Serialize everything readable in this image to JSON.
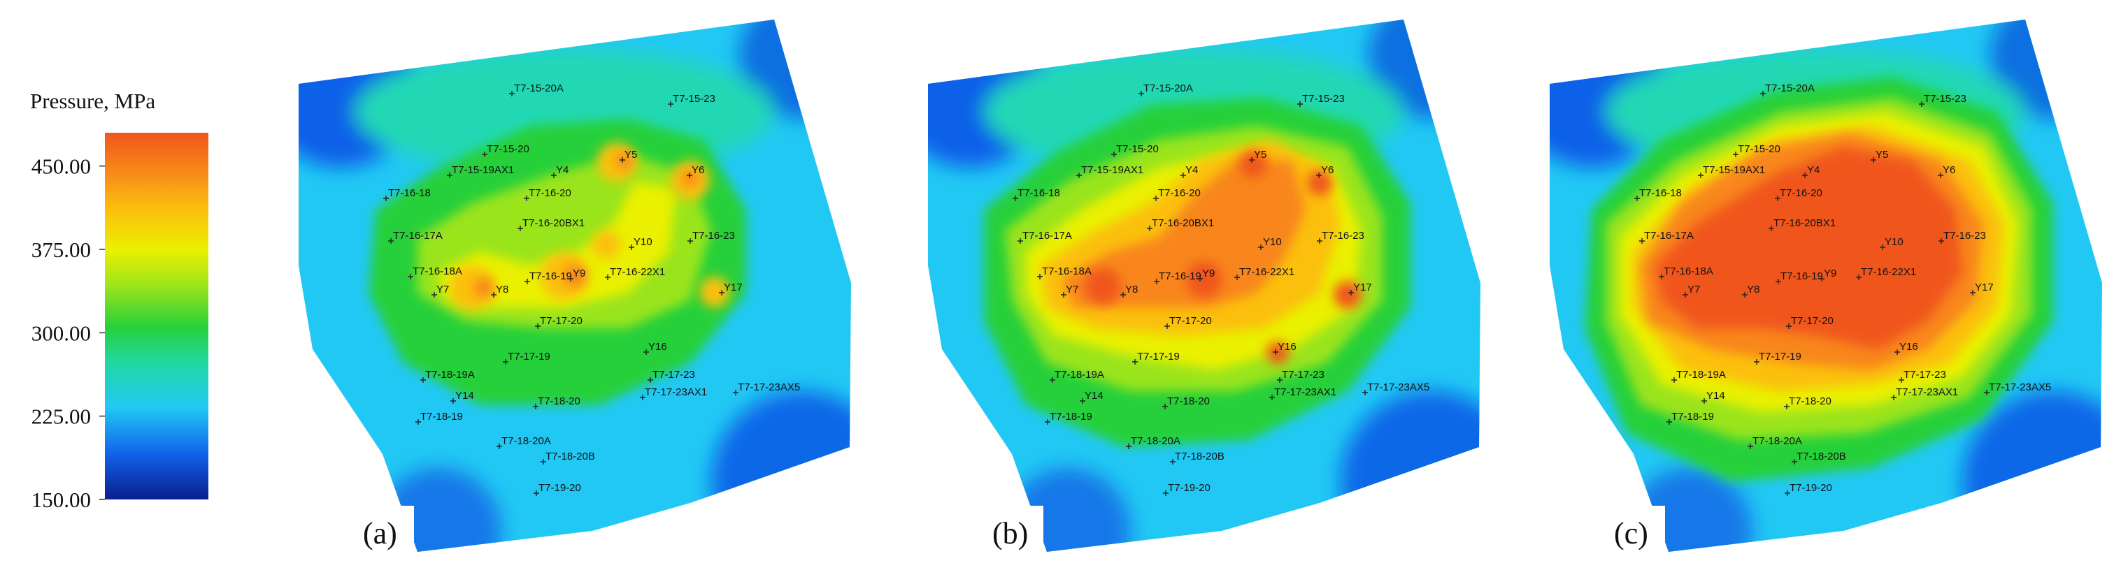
{
  "legend": {
    "title": "Pressure, MPa",
    "min": 150,
    "max": 480,
    "ticks": [
      "450.00",
      "375.00",
      "300.00",
      "225.00",
      "150.00"
    ],
    "tick_values": [
      450,
      375,
      300,
      225,
      150
    ],
    "colors": [
      "#0a1e8c",
      "#1060e8",
      "#22c8f4",
      "#20d8a4",
      "#26d03a",
      "#9ae41c",
      "#eaf000",
      "#fbc00e",
      "#f8861a",
      "#f0561c"
    ]
  },
  "wells": [
    {
      "name": "T7-15-20A"
    },
    {
      "name": "T7-15-23"
    },
    {
      "name": "T7-15-20"
    },
    {
      "name": "Y5"
    },
    {
      "name": "T7-15-19AX1"
    },
    {
      "name": "Y4"
    },
    {
      "name": "Y6"
    },
    {
      "name": "T7-16-18"
    },
    {
      "name": "T7-16-20"
    },
    {
      "name": "T7-16-20BX1"
    },
    {
      "name": "T7-16-17A"
    },
    {
      "name": "T7-16-23"
    },
    {
      "name": "Y10"
    },
    {
      "name": "T7-16-18A"
    },
    {
      "name": "Y7"
    },
    {
      "name": "Y8"
    },
    {
      "name": "T7-16-19"
    },
    {
      "name": "Y9"
    },
    {
      "name": "T7-16-22X1"
    },
    {
      "name": "Y17"
    },
    {
      "name": "T7-17-20"
    },
    {
      "name": "T7-17-19"
    },
    {
      "name": "Y16"
    },
    {
      "name": "T7-18-19A"
    },
    {
      "name": "T7-17-23"
    },
    {
      "name": "Y14"
    },
    {
      "name": "T7-17-23AX1"
    },
    {
      "name": "T7-17-23AX5"
    },
    {
      "name": "T7-18-20"
    },
    {
      "name": "T7-18-19"
    },
    {
      "name": "T7-18-20A"
    },
    {
      "name": "T7-18-20B"
    },
    {
      "name": "T7-19-20"
    }
  ],
  "panels": [
    {
      "label": "(a)",
      "stage": 1
    },
    {
      "label": "(b)",
      "stage": 2
    },
    {
      "label": "(c)",
      "stage": 3
    }
  ]
}
